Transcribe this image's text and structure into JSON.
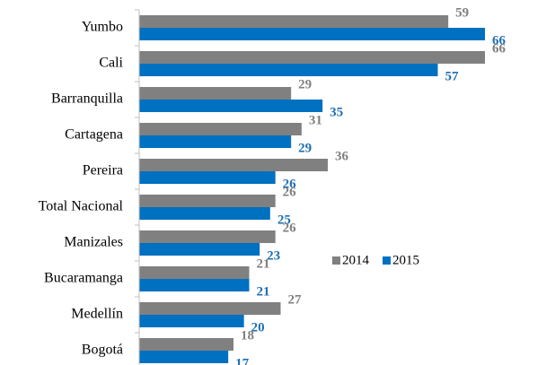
{
  "chart_data": {
    "type": "bar",
    "orientation": "horizontal",
    "categories": [
      "Yumbo",
      "Cali",
      "Barranquilla",
      "Cartagena",
      "Pereira",
      "Total Nacional",
      "Manizales",
      "Bucaramanga",
      "Medellín",
      "Bogotá"
    ],
    "series": [
      {
        "name": "2014",
        "color": "#808080",
        "values": [
          59,
          66,
          29,
          31,
          36,
          26,
          26,
          21,
          27,
          18
        ]
      },
      {
        "name": "2015",
        "color": "#0070c0",
        "values": [
          66,
          57,
          35,
          29,
          26,
          25,
          23,
          21,
          20,
          17
        ]
      }
    ],
    "legend": "right"
  }
}
